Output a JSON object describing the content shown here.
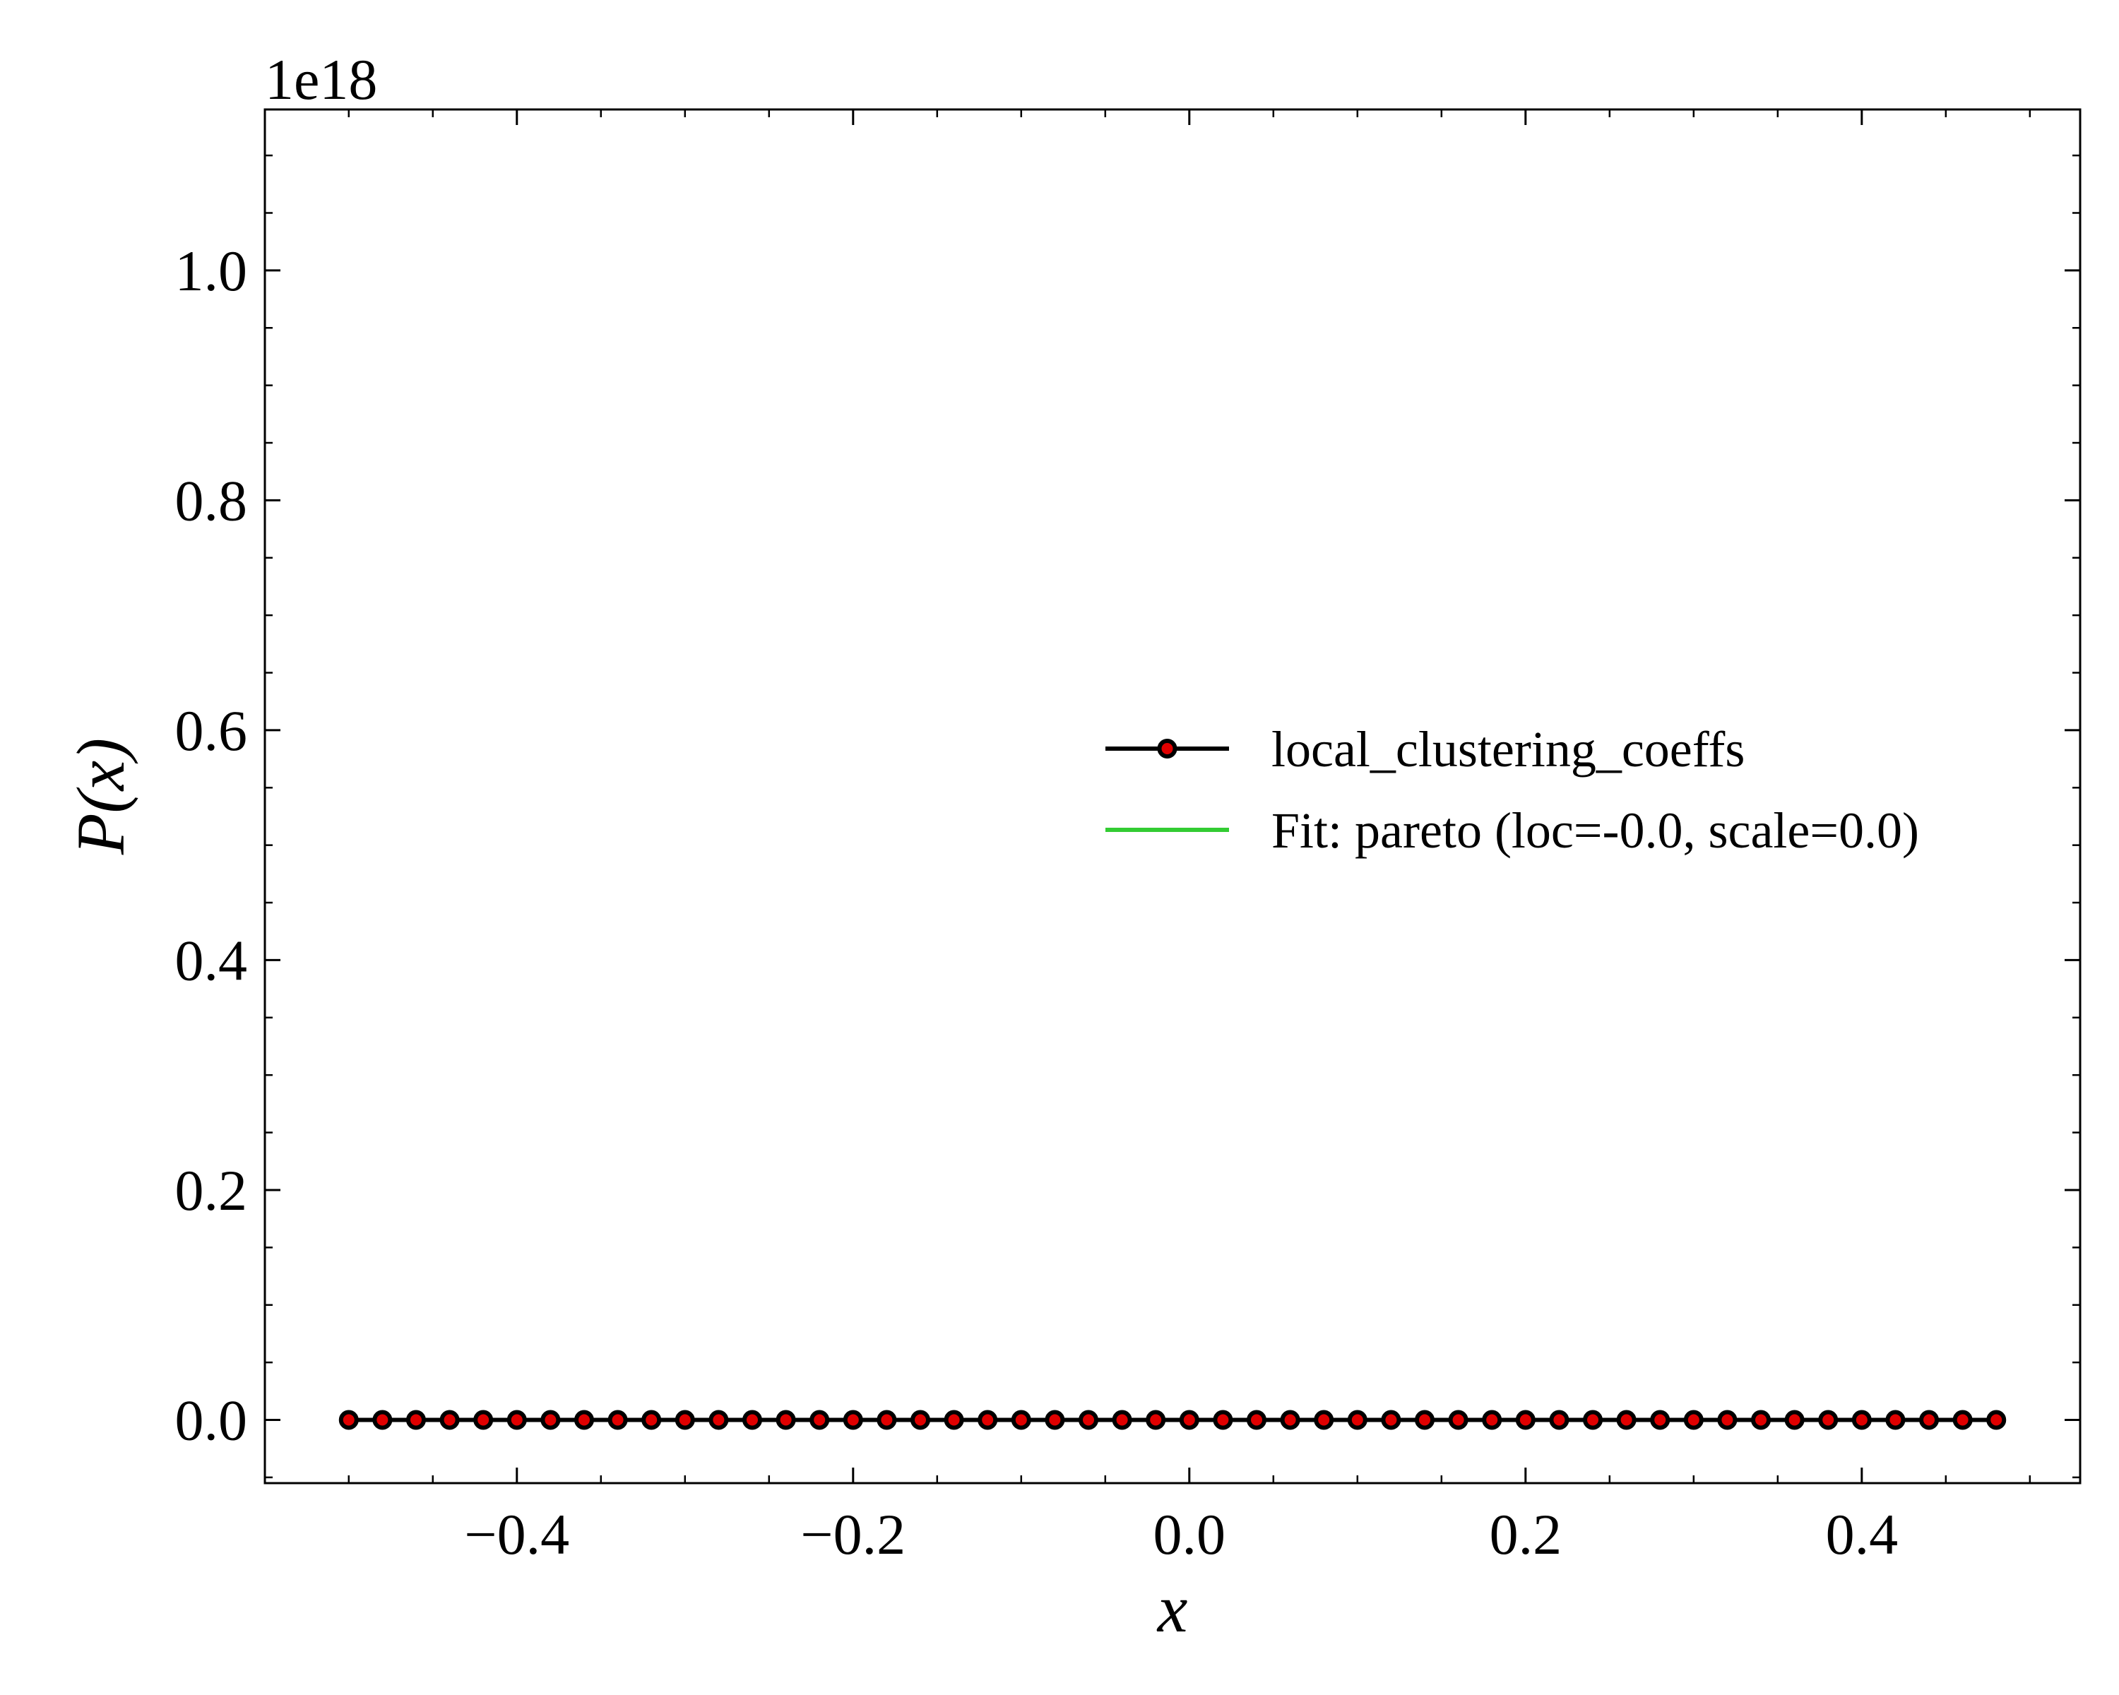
{
  "chart_data": {
    "type": "line",
    "title": "",
    "xlabel": "x",
    "ylabel": "P(x)",
    "y_offset_label": "1e18",
    "xlim": [
      -0.5499,
      0.5299
    ],
    "ylim": [
      -0.055,
      1.14
    ],
    "x_ticks": [
      -0.4,
      -0.2,
      0.0,
      0.2,
      0.4
    ],
    "x_tick_labels": [
      "−0.4",
      "−0.2",
      "0.0",
      "0.2",
      "0.4"
    ],
    "y_ticks": [
      0.0,
      0.2,
      0.4,
      0.6,
      0.8,
      1.0
    ],
    "y_tick_labels": [
      "0.0",
      "0.2",
      "0.4",
      "0.6",
      "0.8",
      "1.0"
    ],
    "x_minor_step": 0.05,
    "y_minor_step": 0.05,
    "grid": false,
    "legend_position": "center-right",
    "series": [
      {
        "name": "local_clustering_coeffs",
        "line_color": "#000000",
        "marker_face_color": "#e00000",
        "marker_edge_color": "#000000",
        "marker": "circle",
        "x": [
          -0.5,
          -0.48,
          -0.46,
          -0.44,
          -0.42,
          -0.4,
          -0.38,
          -0.36,
          -0.34,
          -0.32,
          -0.3,
          -0.28,
          -0.26,
          -0.24,
          -0.22,
          -0.2,
          -0.18,
          -0.16,
          -0.14,
          -0.12,
          -0.1,
          -0.08,
          -0.06,
          -0.04,
          -0.02,
          0.0,
          0.02,
          0.04,
          0.06,
          0.08,
          0.1,
          0.12,
          0.14,
          0.16,
          0.18,
          0.2,
          0.22,
          0.24,
          0.26,
          0.28,
          0.3,
          0.32,
          0.34,
          0.36,
          0.38,
          0.4,
          0.42,
          0.44,
          0.46,
          0.48
        ],
        "y": [
          0,
          0,
          0,
          0,
          0,
          0,
          0,
          0,
          0,
          0,
          0,
          0,
          0,
          0,
          0,
          0,
          0,
          0,
          0,
          0,
          0,
          0,
          0,
          0,
          0,
          0,
          0,
          0,
          0,
          0,
          0,
          0,
          0,
          0,
          0,
          0,
          0,
          0,
          0,
          0,
          0,
          0,
          0,
          0,
          0,
          0,
          0,
          0,
          0,
          0
        ]
      },
      {
        "name": "Fit: pareto (loc=-0.0, scale=0.0)",
        "line_color": "#33cc33",
        "marker": "none",
        "x": [],
        "y": []
      }
    ]
  }
}
